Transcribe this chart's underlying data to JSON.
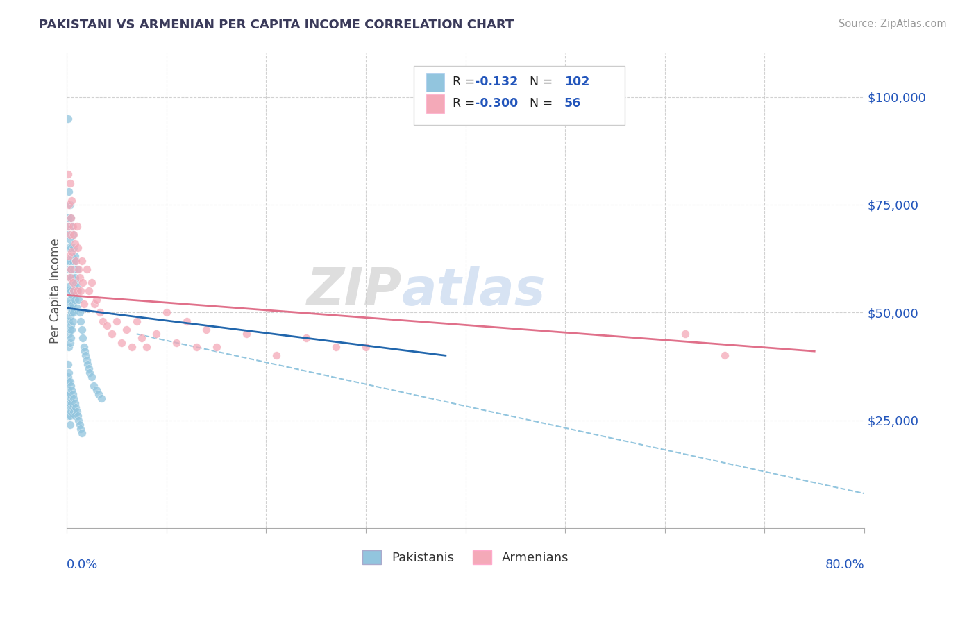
{
  "title": "PAKISTANI VS ARMENIAN PER CAPITA INCOME CORRELATION CHART",
  "source": "Source: ZipAtlas.com",
  "ylabel": "Per Capita Income",
  "ytick_labels": [
    "$25,000",
    "$50,000",
    "$75,000",
    "$100,000"
  ],
  "ytick_values": [
    25000,
    50000,
    75000,
    100000
  ],
  "xlim": [
    0,
    0.8
  ],
  "ylim": [
    0,
    110000
  ],
  "watermark_zip": "ZIP",
  "watermark_atlas": "atlas",
  "pakistani_color": "#92c5de",
  "armenian_color": "#f4a9b8",
  "pakistani_line_color": "#2166ac",
  "armenian_line_color": "#e0708a",
  "dashed_line_color": "#92c5de",
  "legend_r1_black": "R = -0.132   N = ",
  "legend_r1_blue": "102",
  "legend_r2_black": "R = -0.300   N =  ",
  "legend_r2_blue": "56",
  "pakistani_scatter_x": [
    0.001,
    0.001,
    0.001,
    0.001,
    0.001,
    0.002,
    0.002,
    0.002,
    0.002,
    0.002,
    0.002,
    0.002,
    0.002,
    0.002,
    0.003,
    0.003,
    0.003,
    0.003,
    0.003,
    0.003,
    0.003,
    0.003,
    0.004,
    0.004,
    0.004,
    0.004,
    0.004,
    0.004,
    0.004,
    0.005,
    0.005,
    0.005,
    0.005,
    0.005,
    0.005,
    0.006,
    0.006,
    0.006,
    0.006,
    0.006,
    0.007,
    0.007,
    0.007,
    0.007,
    0.008,
    0.008,
    0.008,
    0.009,
    0.009,
    0.01,
    0.01,
    0.01,
    0.011,
    0.012,
    0.013,
    0.014,
    0.015,
    0.016,
    0.017,
    0.018,
    0.019,
    0.02,
    0.021,
    0.022,
    0.023,
    0.025,
    0.027,
    0.03,
    0.032,
    0.035,
    0.001,
    0.001,
    0.001,
    0.001,
    0.002,
    0.002,
    0.002,
    0.002,
    0.002,
    0.003,
    0.003,
    0.003,
    0.003,
    0.003,
    0.004,
    0.004,
    0.004,
    0.005,
    0.005,
    0.006,
    0.006,
    0.007,
    0.007,
    0.008,
    0.008,
    0.009,
    0.01,
    0.011,
    0.012,
    0.013,
    0.014,
    0.015
  ],
  "pakistani_scatter_y": [
    95000,
    72000,
    68000,
    62000,
    55000,
    78000,
    70000,
    65000,
    60000,
    56000,
    52000,
    48000,
    45000,
    42000,
    75000,
    67000,
    62000,
    58000,
    53000,
    49000,
    46000,
    43000,
    72000,
    65000,
    60000,
    55000,
    51000,
    47000,
    44000,
    70000,
    63000,
    58000,
    54000,
    50000,
    46000,
    68000,
    62000,
    57000,
    52000,
    48000,
    65000,
    60000,
    55000,
    50000,
    63000,
    58000,
    53000,
    62000,
    57000,
    60000,
    56000,
    51000,
    55000,
    53000,
    50000,
    48000,
    46000,
    44000,
    42000,
    41000,
    40000,
    39000,
    38000,
    37000,
    36000,
    35000,
    33000,
    32000,
    31000,
    30000,
    38000,
    35000,
    32000,
    29000,
    36000,
    34000,
    31000,
    28000,
    26000,
    34000,
    31000,
    29000,
    26000,
    24000,
    33000,
    30000,
    27000,
    32000,
    29000,
    31000,
    28000,
    30000,
    27000,
    29000,
    26000,
    28000,
    27000,
    26000,
    25000,
    24000,
    23000,
    22000
  ],
  "armenian_scatter_x": [
    0.001,
    0.001,
    0.002,
    0.002,
    0.003,
    0.003,
    0.003,
    0.004,
    0.004,
    0.005,
    0.005,
    0.006,
    0.006,
    0.007,
    0.007,
    0.008,
    0.009,
    0.01,
    0.01,
    0.011,
    0.012,
    0.013,
    0.014,
    0.015,
    0.016,
    0.017,
    0.02,
    0.022,
    0.025,
    0.028,
    0.03,
    0.033,
    0.036,
    0.04,
    0.045,
    0.05,
    0.055,
    0.06,
    0.065,
    0.07,
    0.075,
    0.08,
    0.09,
    0.1,
    0.11,
    0.12,
    0.13,
    0.14,
    0.15,
    0.18,
    0.21,
    0.24,
    0.27,
    0.3,
    0.62,
    0.66
  ],
  "armenian_scatter_y": [
    82000,
    70000,
    75000,
    63000,
    80000,
    68000,
    58000,
    72000,
    60000,
    76000,
    64000,
    70000,
    57000,
    68000,
    55000,
    66000,
    62000,
    70000,
    55000,
    65000,
    60000,
    58000,
    55000,
    62000,
    57000,
    52000,
    60000,
    55000,
    57000,
    52000,
    53000,
    50000,
    48000,
    47000,
    45000,
    48000,
    43000,
    46000,
    42000,
    48000,
    44000,
    42000,
    45000,
    50000,
    43000,
    48000,
    42000,
    46000,
    42000,
    45000,
    40000,
    44000,
    42000,
    42000,
    45000,
    40000
  ],
  "blue_trendline_x": [
    0.0,
    0.38
  ],
  "blue_trendline_y": [
    51000,
    40000
  ],
  "pink_trendline_x": [
    0.0,
    0.75
  ],
  "pink_trendline_y": [
    54000,
    41000
  ],
  "dashed_trendline_x": [
    0.07,
    0.8
  ],
  "dashed_trendline_y": [
    45000,
    8000
  ]
}
